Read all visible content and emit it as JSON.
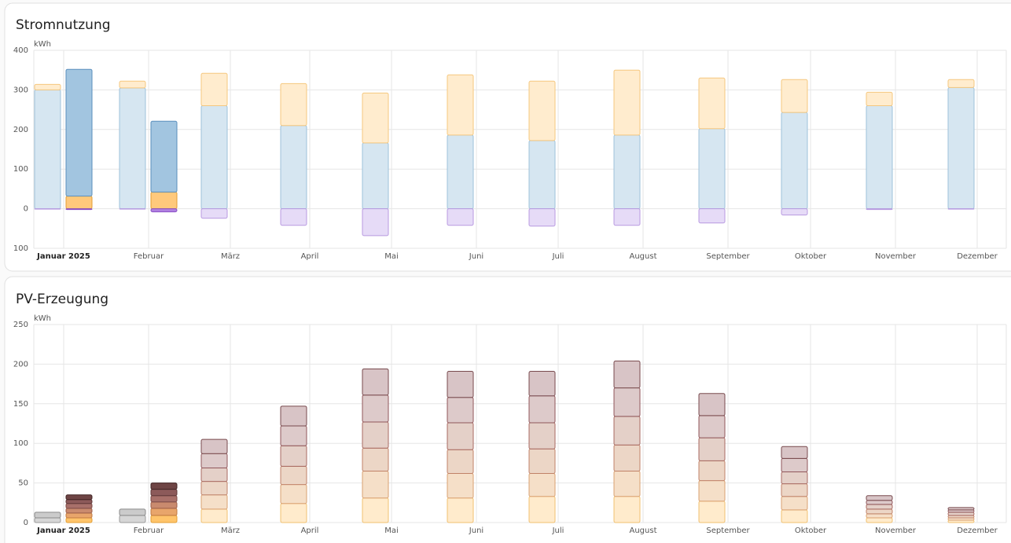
{
  "chart_data": [
    {
      "type": "bar",
      "title": "Stromnutzung",
      "y_label": "kWh",
      "stacked": true,
      "categories": [
        "Januar 2025",
        "Februar",
        "März",
        "April",
        "Mai",
        "Juni",
        "Juli",
        "August",
        "September",
        "Oktober",
        "November",
        "Dezember"
      ],
      "ylim": [
        -100,
        400
      ],
      "yticks": [
        400,
        300,
        200,
        100,
        0,
        {
          "value": -100,
          "label": "100"
        }
      ],
      "grid": true,
      "series": [
        {
          "stack": "left",
          "color": "#d6e6f1",
          "border": "#9ec1da",
          "values": [
            300,
            305,
            260,
            210,
            166,
            186,
            172,
            186,
            202,
            243,
            260,
            306
          ]
        },
        {
          "stack": "left",
          "color": "#ffecce",
          "border": "#f5c77e",
          "values": [
            14,
            17,
            82,
            106,
            126,
            152,
            150,
            164,
            128,
            83,
            34,
            20
          ]
        },
        {
          "stack": "left",
          "color": "#e6dbf7",
          "border": "#b89ae0",
          "values": [
            -1,
            -1,
            -24,
            -42,
            -68,
            -42,
            -44,
            -42,
            -36,
            -16,
            -2,
            -1
          ]
        },
        {
          "stack": "right",
          "color": "#ffc97c",
          "border": "#e39e33",
          "values": [
            32,
            42,
            null,
            null,
            null,
            null,
            null,
            null,
            null,
            null,
            null,
            null
          ]
        },
        {
          "stack": "right",
          "color": "#a2c5e0",
          "border": "#5a8fbd",
          "values": [
            320,
            179,
            null,
            null,
            null,
            null,
            null,
            null,
            null,
            null,
            null,
            null
          ]
        },
        {
          "stack": "right",
          "color": "#b080e0",
          "border": "#8a4fc4",
          "values": [
            -2,
            -8,
            null,
            null,
            null,
            null,
            null,
            null,
            null,
            null,
            null,
            null
          ]
        }
      ]
    },
    {
      "type": "bar",
      "title": "PV-Erzeugung",
      "y_label": "kWh",
      "stacked": true,
      "categories": [
        "Januar 2025",
        "Februar",
        "März",
        "April",
        "Mai",
        "Juni",
        "Juli",
        "August",
        "September",
        "Oktober",
        "November",
        "Dezember"
      ],
      "ylim": [
        0,
        250
      ],
      "yticks": [
        250,
        200,
        150,
        100,
        50,
        0
      ],
      "grid": true,
      "series": [
        {
          "stack": "left",
          "color": "#d6d6d6",
          "border": "#9a9a9a",
          "values": [
            6,
            9,
            null,
            null,
            null,
            null,
            null,
            null,
            null,
            null,
            null,
            null
          ]
        },
        {
          "stack": "left",
          "color": "#cbcbcb",
          "border": "#8a8a8a",
          "values": [
            7,
            8,
            null,
            null,
            null,
            null,
            null,
            null,
            null,
            null,
            null,
            null
          ]
        },
        {
          "stack": "left",
          "color": "#ffebcc",
          "border": "#f0c070",
          "values": [
            null,
            null,
            17,
            24,
            31,
            31,
            33,
            33,
            27,
            16,
            6,
            3
          ]
        },
        {
          "stack": "left",
          "color": "#f5dfc8",
          "border": "#d9a070",
          "values": [
            null,
            null,
            18,
            24,
            34,
            31,
            29,
            32,
            26,
            17,
            5,
            3
          ]
        },
        {
          "stack": "left",
          "color": "#ecd6c6",
          "border": "#c08268",
          "values": [
            null,
            null,
            17,
            23,
            29,
            30,
            31,
            33,
            25,
            16,
            6,
            3
          ]
        },
        {
          "stack": "left",
          "color": "#e4d0c8",
          "border": "#a86a62",
          "values": [
            null,
            null,
            17,
            26,
            33,
            34,
            33,
            36,
            29,
            15,
            6,
            4
          ]
        },
        {
          "stack": "left",
          "color": "#ddcaca",
          "border": "#90565a",
          "values": [
            null,
            null,
            18,
            25,
            34,
            32,
            34,
            36,
            28,
            17,
            5,
            3
          ]
        },
        {
          "stack": "left",
          "color": "#d8c4c6",
          "border": "#784a4e",
          "values": [
            null,
            null,
            18,
            25,
            33,
            33,
            31,
            34,
            28,
            15,
            6,
            3
          ]
        },
        {
          "stack": "right",
          "color": "#ffc46b",
          "border": "#e39e33",
          "values": [
            6,
            9,
            null,
            null,
            null,
            null,
            null,
            null,
            null,
            null,
            null,
            null
          ]
        },
        {
          "stack": "right",
          "color": "#e8a56b",
          "border": "#c07a40",
          "values": [
            6,
            9,
            null,
            null,
            null,
            null,
            null,
            null,
            null,
            null,
            null,
            null
          ]
        },
        {
          "stack": "right",
          "color": "#c98a6e",
          "border": "#9c5e48",
          "values": [
            6,
            8,
            null,
            null,
            null,
            null,
            null,
            null,
            null,
            null,
            null,
            null
          ]
        },
        {
          "stack": "right",
          "color": "#a8706a",
          "border": "#7c4a46",
          "values": [
            6,
            8,
            null,
            null,
            null,
            null,
            null,
            null,
            null,
            null,
            null,
            null
          ]
        },
        {
          "stack": "right",
          "color": "#8c5a5a",
          "border": "#603838",
          "values": [
            5,
            8,
            null,
            null,
            null,
            null,
            null,
            null,
            null,
            null,
            null,
            null
          ]
        },
        {
          "stack": "right",
          "color": "#6e4444",
          "border": "#402424",
          "values": [
            6,
            8,
            null,
            null,
            null,
            null,
            null,
            null,
            null,
            null,
            null,
            null
          ]
        }
      ]
    }
  ]
}
